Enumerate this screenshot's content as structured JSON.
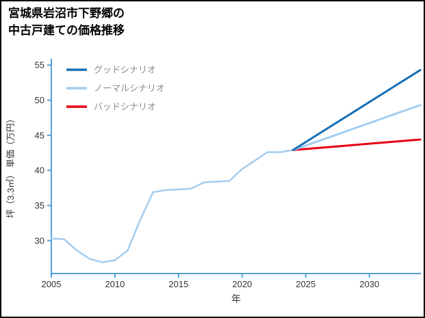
{
  "page": {
    "title_line1": "宮城県岩沼市下野郷の",
    "title_line2": "中古戸建ての価格推移"
  },
  "chart_data": {
    "type": "line",
    "title": "宮城県岩沼市下野郷の中古戸建ての価格推移",
    "xlabel": "年",
    "ylabel": "坪（3.3㎡） 単価（万円）",
    "xlim": [
      2005,
      2034.05
    ],
    "ylim": [
      25.3,
      55.9
    ],
    "x_ticks": [
      2005,
      2010,
      2015,
      2020,
      2025,
      2030
    ],
    "y_ticks": [
      30,
      35,
      40,
      45,
      50,
      55
    ],
    "grid": false,
    "legend_position": "top-left",
    "colors": {
      "axis": "#4f9fdc",
      "tick_label": "#333333",
      "legend_label": "#8a8a8a"
    },
    "series": [
      {
        "name": "グッドシナリオ",
        "legend": true,
        "color": "#1570b8",
        "width": 3,
        "x": [
          2024,
          2034
        ],
        "values": [
          42.9,
          54.3
        ]
      },
      {
        "name": "ノーマルシナリオ",
        "legend": true,
        "color": "#a3cdf0",
        "width": 3,
        "x": [
          2024,
          2034
        ],
        "values": [
          42.9,
          49.3
        ]
      },
      {
        "name": "バッドシナリオ",
        "legend": true,
        "color": "#e60012",
        "width": 3,
        "x": [
          2024,
          2034
        ],
        "values": [
          42.9,
          44.4
        ]
      },
      {
        "name": "historical",
        "legend": false,
        "color": "#a3cdf0",
        "width": 2.5,
        "x": [
          2005,
          2006,
          2007,
          2008,
          2009,
          2010,
          2011,
          2012,
          2013,
          2014,
          2015,
          2016,
          2017,
          2018,
          2019,
          2020,
          2021,
          2022,
          2023,
          2024
        ],
        "values": [
          30.3,
          30.2,
          28.6,
          27.4,
          26.9,
          27.2,
          28.6,
          33.0,
          36.9,
          37.2,
          37.3,
          37.4,
          38.3,
          38.4,
          38.5,
          40.2,
          41.4,
          42.6,
          42.6,
          42.9
        ]
      }
    ]
  }
}
